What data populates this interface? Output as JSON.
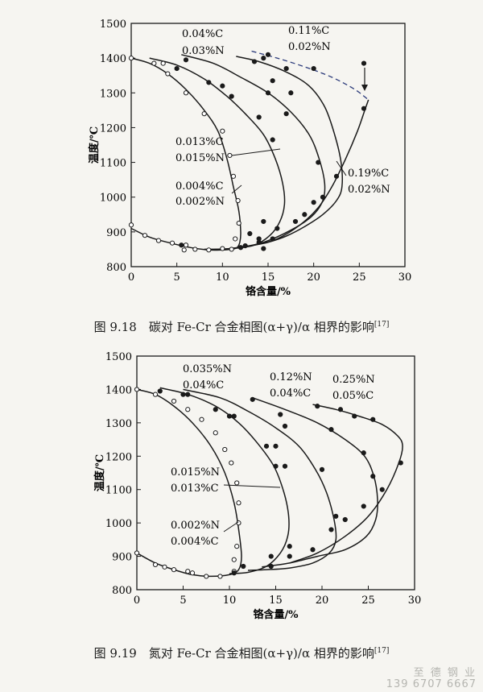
{
  "fig1": {
    "chart_data": {
      "type": "line",
      "xlabel": "铬含量/%",
      "ylabel": "温度/℃",
      "xlim": [
        0,
        30
      ],
      "ylim": [
        800,
        1500
      ],
      "xticks": [
        "0",
        "5",
        "10",
        "15",
        "20",
        "25",
        "30"
      ],
      "yticks": [
        "800",
        "900",
        "1000",
        "1100",
        "1200",
        "1300",
        "1400",
        "1500"
      ],
      "labels": [
        "0.04%C",
        "0.03%N",
        "0.11%C",
        "0.02%N",
        "0.013%C",
        "0.015%N",
        "0.004%C",
        "0.002%N",
        "0.19%C",
        "0.02%N"
      ],
      "series": [
        {
          "name": "0.004%C 0.002%N",
          "x": [
            0,
            2,
            4,
            6,
            8,
            9.5,
            10.5,
            11.2,
            11.8,
            12.0,
            11.9,
            11.6,
            11.0,
            10.0,
            8.5,
            6.5,
            4,
            2,
            0
          ],
          "y": [
            1400,
            1385,
            1355,
            1310,
            1250,
            1190,
            1110,
            1030,
            960,
            900,
            870,
            855,
            850,
            848,
            848,
            855,
            870,
            885,
            910
          ]
        },
        {
          "name": "0.013%C 0.015%N",
          "x": [
            2,
            5,
            8,
            10.5,
            12.5,
            14.5,
            15.8,
            16.6,
            16.8,
            16.3,
            15.2,
            13.5,
            11,
            8
          ],
          "y": [
            1400,
            1380,
            1340,
            1290,
            1240,
            1180,
            1110,
            1040,
            980,
            930,
            890,
            862,
            852,
            850
          ]
        },
        {
          "name": "0.04%C 0.03%N",
          "x": [
            5.5,
            9,
            12,
            15,
            17.5,
            19.5,
            20.6,
            21.2,
            21.0,
            19.8,
            17.5,
            14.5,
            12,
            10
          ],
          "y": [
            1410,
            1385,
            1345,
            1300,
            1245,
            1180,
            1110,
            1040,
            990,
            945,
            905,
            870,
            856,
            850
          ]
        },
        {
          "name": "0.11%C 0.02%N",
          "x": [
            11.5,
            14,
            17,
            19.5,
            21.2,
            22.3,
            23.0,
            23.1,
            22.5,
            21,
            19,
            17,
            15,
            13.5
          ],
          "y": [
            1405,
            1390,
            1360,
            1320,
            1260,
            1180,
            1100,
            1030,
            990,
            950,
            915,
            888,
            870,
            862
          ]
        },
        {
          "name": "0.19%C 0.02%N",
          "x": [
            13.5,
            16,
            18.5,
            20.5,
            22,
            23.5,
            24.8,
            25.6,
            26.0
          ],
          "y": [
            862,
            880,
            920,
            970,
            1030,
            1110,
            1190,
            1250,
            1280
          ]
        },
        {
          "name": "boundary-dashed",
          "x": [
            13.2,
            16,
            19,
            22,
            24.5,
            26.0
          ],
          "y": [
            1420,
            1400,
            1375,
            1345,
            1310,
            1280
          ]
        }
      ]
    },
    "caption": "图 9.18　碳对 Fe-Cr 合金相图(α+γ)/α 相界的影响",
    "ref": "[17]"
  },
  "fig2": {
    "chart_data": {
      "type": "line",
      "xlabel": "铬含量/%",
      "ylabel": "温度/℃",
      "xlim": [
        0,
        30
      ],
      "ylim": [
        800,
        1500
      ],
      "xticks": [
        "0",
        "5",
        "10",
        "15",
        "20",
        "25",
        "30"
      ],
      "yticks": [
        "800",
        "900",
        "1000",
        "1100",
        "1200",
        "1300",
        "1400",
        "1500"
      ],
      "labels": [
        "0.035%N",
        "0.04%C",
        "0.12%N",
        "0.04%C",
        "0.25%N",
        "0.05%C",
        "0.015%N",
        "0.013%C",
        "0.002%N",
        "0.004%C"
      ],
      "series": [
        {
          "name": "0.002%N 0.004%C",
          "x": [
            0,
            2,
            4,
            6,
            8,
            9.5,
            10.5,
            11.0,
            11.3,
            11.0,
            10.0,
            8.0,
            6.0,
            4.0,
            2.0,
            0
          ],
          "y": [
            1400,
            1385,
            1350,
            1300,
            1230,
            1150,
            1060,
            980,
            900,
            860,
            845,
            840,
            845,
            860,
            880,
            910
          ]
        },
        {
          "name": "0.015%N 0.013%C",
          "x": [
            2.5,
            5.5,
            8.5,
            11,
            13,
            14.8,
            15.9,
            16.4,
            16.3,
            15.5,
            14,
            12,
            10
          ],
          "y": [
            1405,
            1385,
            1350,
            1300,
            1240,
            1170,
            1090,
            1020,
            960,
            910,
            870,
            852,
            848
          ]
        },
        {
          "name": "0.035%N 0.04%C",
          "x": [
            5,
            9,
            12,
            15,
            17.5,
            19.3,
            20.5,
            21.3,
            21.5,
            20.8,
            19,
            16.5,
            14,
            12
          ],
          "y": [
            1400,
            1375,
            1335,
            1285,
            1230,
            1160,
            1090,
            1010,
            950,
            910,
            880,
            865,
            860,
            858
          ]
        },
        {
          "name": "0.12%N 0.04%C",
          "x": [
            12.5,
            16,
            19.5,
            22.5,
            24.6,
            25.6,
            26.0,
            25.8,
            24.8,
            22.5,
            19.5,
            16.5,
            13.5
          ],
          "y": [
            1375,
            1340,
            1300,
            1250,
            1200,
            1140,
            1070,
            1010,
            960,
            920,
            900,
            880,
            868
          ]
        },
        {
          "name": "0.25%N 0.05%C",
          "x": [
            19,
            21.5,
            24,
            26.5,
            28.2,
            28.7,
            28.3,
            27.0,
            25.0,
            22.5,
            19.5,
            16.5
          ],
          "y": [
            1355,
            1340,
            1320,
            1295,
            1260,
            1230,
            1180,
            1100,
            1020,
            960,
            910,
            880
          ]
        }
      ]
    },
    "caption": "图 9.19　氮对 Fe-Cr 合金相图(α+γ)/α 相界的影响",
    "ref": "[17]"
  },
  "watermark": {
    "line1": "至 德 钢 业",
    "line2": "139 6707 6667"
  }
}
